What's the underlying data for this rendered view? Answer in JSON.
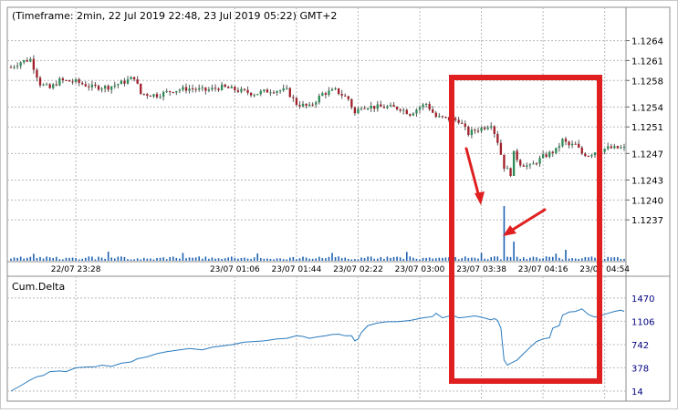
{
  "header": {
    "title": "(Timeframe: 2min, 22 Jul 2019 22:48, 23 Jul 2019 05:22) GMT+2"
  },
  "colors": {
    "up": "#2e8b57",
    "down": "#a0202a",
    "wick": "#555555",
    "volume": "#1f63b3",
    "delta_line": "#2a7bbf",
    "grid": "#b8b8b8",
    "annotation": "#e02020",
    "axis_text": "#000080"
  },
  "chart_data": [
    {
      "type": "candlestick",
      "title": "(Timeframe: 2min, 22 Jul 2019 22:48, 23 Jul 2019 05:22) GMT+2",
      "x_tick_labels": [
        "22/07 23:28",
        "23/07 01:06",
        "23/07 01:44",
        "23/07 02:22",
        "23/07 03:00",
        "23/07 03:38",
        "23/07 04:16",
        "23/07 04:54"
      ],
      "y_tick_labels": [
        "1.1264",
        "1.1261",
        "1.1258",
        "1.1254",
        "1.1251",
        "1.1247",
        "1.1243",
        "1.1240",
        "1.1237"
      ],
      "ylim": [
        1.1234,
        1.1266
      ],
      "grid": true,
      "close_path": [
        [
          0,
          1.126
        ],
        [
          3,
          1.12608
        ],
        [
          6,
          1.12612
        ],
        [
          9,
          1.12575
        ],
        [
          12,
          1.12568
        ],
        [
          15,
          1.1258
        ],
        [
          20,
          1.12578
        ],
        [
          25,
          1.1257
        ],
        [
          30,
          1.1257
        ],
        [
          35,
          1.12578
        ],
        [
          38,
          1.12585
        ],
        [
          40,
          1.1256
        ],
        [
          45,
          1.12558
        ],
        [
          50,
          1.12565
        ],
        [
          55,
          1.12568
        ],
        [
          60,
          1.12565
        ],
        [
          65,
          1.1257
        ],
        [
          70,
          1.12565
        ],
        [
          75,
          1.1256
        ],
        [
          80,
          1.12565
        ],
        [
          85,
          1.12565
        ],
        [
          88,
          1.12545
        ],
        [
          92,
          1.1254
        ],
        [
          96,
          1.1256
        ],
        [
          100,
          1.12565
        ],
        [
          104,
          1.12552
        ],
        [
          106,
          1.1253
        ],
        [
          108,
          1.12542
        ],
        [
          112,
          1.1254
        ],
        [
          116,
          1.1254
        ],
        [
          120,
          1.12538
        ],
        [
          123,
          1.1253
        ],
        [
          126,
          1.1254
        ],
        [
          128,
          1.12545
        ],
        [
          131,
          1.12525
        ],
        [
          135,
          1.12522
        ],
        [
          138,
          1.1252
        ],
        [
          141,
          1.125
        ],
        [
          143,
          1.12505
        ],
        [
          146,
          1.1251
        ],
        [
          148,
          1.12515
        ],
        [
          150,
          1.12488
        ],
        [
          152,
          1.1245
        ],
        [
          154,
          1.1244
        ],
        [
          155,
          1.1247
        ],
        [
          157,
          1.12455
        ],
        [
          160,
          1.1245
        ],
        [
          164,
          1.12465
        ],
        [
          168,
          1.12475
        ],
        [
          170,
          1.1249
        ],
        [
          172,
          1.12482
        ],
        [
          174,
          1.12483
        ],
        [
          176,
          1.1247
        ],
        [
          178,
          1.12468
        ],
        [
          181,
          1.12475
        ],
        [
          184,
          1.12478
        ]
      ],
      "volume_spikes": [
        {
          "x": 152,
          "volume": 10
        },
        {
          "x": 155,
          "volume": 3.5
        },
        {
          "x": 171,
          "volume": 2
        }
      ]
    },
    {
      "type": "line",
      "title": "Cum.Delta",
      "y_tick_labels": [
        "1470",
        "1106",
        "742",
        "378",
        "14"
      ],
      "ylim": [
        0,
        1540
      ],
      "grid": true,
      "series": [
        {
          "points": [
            [
              0,
              14
            ],
            [
              3,
              100
            ],
            [
              6,
              190
            ],
            [
              8,
              240
            ],
            [
              10,
              260
            ],
            [
              12,
              320
            ],
            [
              15,
              330
            ],
            [
              17,
              320
            ],
            [
              20,
              380
            ],
            [
              23,
              390
            ],
            [
              26,
              395
            ],
            [
              28,
              420
            ],
            [
              31,
              400
            ],
            [
              34,
              450
            ],
            [
              37,
              470
            ],
            [
              39,
              520
            ],
            [
              42,
              550
            ],
            [
              45,
              600
            ],
            [
              48,
              630
            ],
            [
              52,
              660
            ],
            [
              55,
              680
            ],
            [
              59,
              660
            ],
            [
              62,
              700
            ],
            [
              65,
              720
            ],
            [
              68,
              740
            ],
            [
              72,
              780
            ],
            [
              75,
              790
            ],
            [
              78,
              800
            ],
            [
              82,
              830
            ],
            [
              85,
              840
            ],
            [
              88,
              880
            ],
            [
              90,
              870
            ],
            [
              92,
              840
            ],
            [
              94,
              860
            ],
            [
              97,
              880
            ],
            [
              99,
              900
            ],
            [
              101,
              905
            ],
            [
              103,
              880
            ],
            [
              105,
              880
            ],
            [
              106,
              800
            ],
            [
              107,
              830
            ],
            [
              108,
              930
            ],
            [
              110,
              1040
            ],
            [
              113,
              1080
            ],
            [
              116,
              1100
            ],
            [
              119,
              1100
            ],
            [
              123,
              1120
            ],
            [
              127,
              1160
            ],
            [
              130,
              1180
            ],
            [
              131,
              1230
            ],
            [
              133,
              1160
            ],
            [
              136,
              1200
            ],
            [
              138,
              1160
            ],
            [
              140,
              1170
            ],
            [
              143,
              1190
            ],
            [
              145,
              1170
            ],
            [
              148,
              1130
            ],
            [
              149,
              1150
            ],
            [
              150,
              1120
            ],
            [
              151,
              1000
            ],
            [
              152,
              500
            ],
            [
              153,
              420
            ],
            [
              154,
              450
            ],
            [
              156,
              500
            ],
            [
              158,
              600
            ],
            [
              160,
              700
            ],
            [
              162,
              790
            ],
            [
              164,
              830
            ],
            [
              166,
              850
            ],
            [
              167,
              1000
            ],
            [
              169,
              1040
            ],
            [
              170,
              1200
            ],
            [
              172,
              1250
            ],
            [
              174,
              1260
            ],
            [
              176,
              1300
            ],
            [
              178,
              1210
            ],
            [
              180,
              1170
            ],
            [
              182,
              1200
            ],
            [
              184,
              1230
            ],
            [
              186,
              1260
            ],
            [
              188,
              1280
            ],
            [
              189,
              1260
            ]
          ]
        }
      ]
    }
  ]
}
